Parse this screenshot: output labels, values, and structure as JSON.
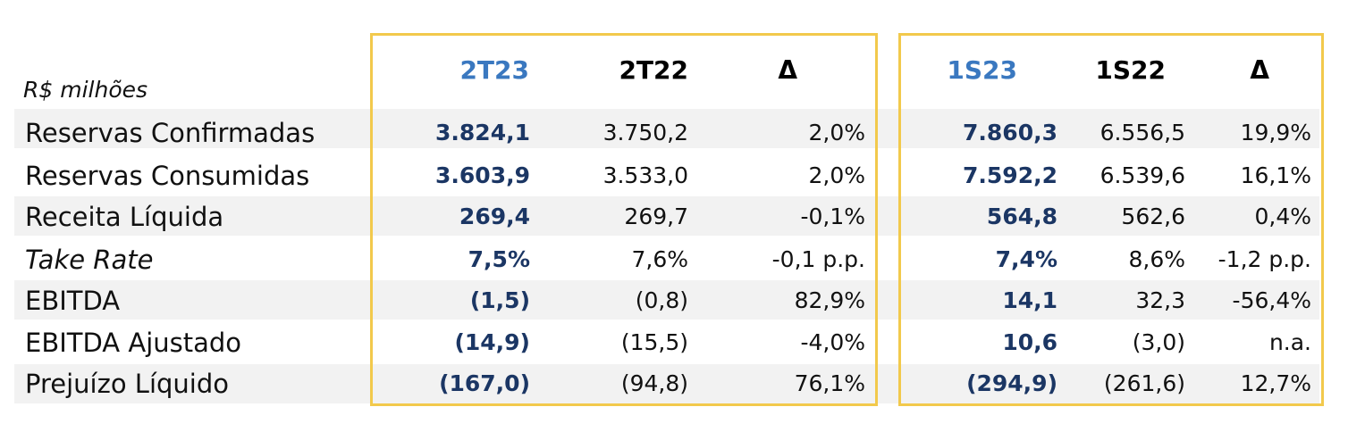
{
  "unit_label": "R$ milhões",
  "headers": {
    "q_current": "2T23",
    "q_previous": "2T22",
    "q_delta": "Δ",
    "s_current": "1S23",
    "s_previous": "1S22",
    "s_delta": "Δ"
  },
  "colors": {
    "highlight_box": "#f2c94c",
    "current_period_header": "#3a78c0",
    "current_period_values": "#1b3664",
    "row_shade": "#f2f2f2"
  },
  "rows": [
    {
      "label": "Reservas Confirmadas",
      "q_current": "3.824,1",
      "q_previous": "3.750,2",
      "q_delta": "2,0%",
      "s_current": "7.860,3",
      "s_previous": "6.556,5",
      "s_delta": "19,9%"
    },
    {
      "label": "Reservas Consumidas",
      "q_current": "3.603,9",
      "q_previous": "3.533,0",
      "q_delta": "2,0%",
      "s_current": "7.592,2",
      "s_previous": "6.539,6",
      "s_delta": "16,1%"
    },
    {
      "label": "Receita Líquida",
      "q_current": "269,4",
      "q_previous": "269,7",
      "q_delta": "-0,1%",
      "s_current": "564,8",
      "s_previous": "562,6",
      "s_delta": "0,4%"
    },
    {
      "label": "Take Rate",
      "q_current": "7,5%",
      "q_previous": "7,6%",
      "q_delta": "-0,1 p.p.",
      "s_current": "7,4%",
      "s_previous": "8,6%",
      "s_delta": "-1,2 p.p."
    },
    {
      "label": "EBITDA",
      "q_current": "(1,5)",
      "q_previous": "(0,8)",
      "q_delta": "82,9%",
      "s_current": "14,1",
      "s_previous": "32,3",
      "s_delta": "-56,4%"
    },
    {
      "label": "EBITDA Ajustado",
      "q_current": "(14,9)",
      "q_previous": "(15,5)",
      "q_delta": "-4,0%",
      "s_current": "10,6",
      "s_previous": "(3,0)",
      "s_delta": "n.a."
    },
    {
      "label": "Prejuízo Líquido",
      "q_current": "(167,0)",
      "q_previous": "(94,8)",
      "q_delta": "76,1%",
      "s_current": "(294,9)",
      "s_previous": "(261,6)",
      "s_delta": "12,7%"
    }
  ]
}
